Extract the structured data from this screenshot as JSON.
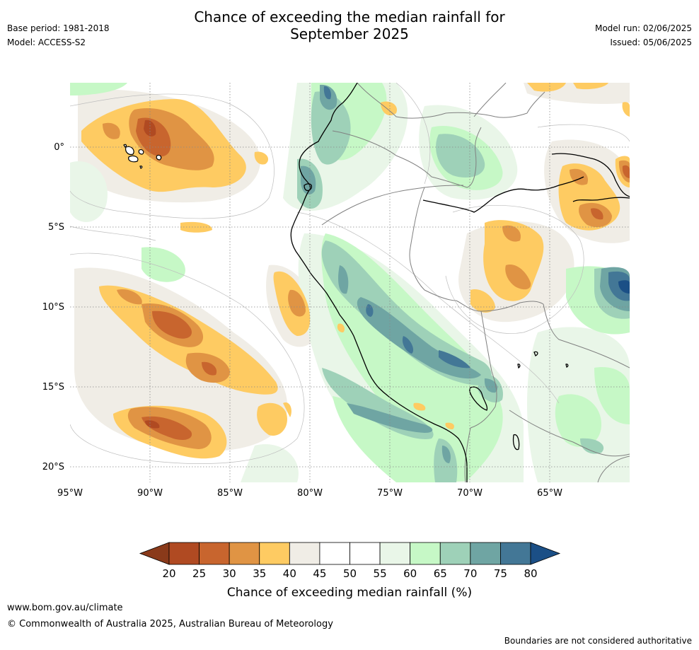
{
  "header": {
    "title_line1": "Chance of exceeding the median rainfall for",
    "title_line2": "September 2025",
    "base_period": "Base period: 1981-2018",
    "model": "Model: ACCESS-S2",
    "model_run": "Model run: 02/06/2025",
    "issued": "Issued: 05/06/2025"
  },
  "map": {
    "lon_labels": [
      "95°W",
      "90°W",
      "85°W",
      "80°W",
      "75°W",
      "70°W",
      "65°W"
    ],
    "lat_labels": [
      "0°",
      "5°S",
      "10°S",
      "15°S",
      "20°S"
    ]
  },
  "colorbar": {
    "ticks": [
      "20",
      "25",
      "30",
      "35",
      "40",
      "45",
      "50",
      "55",
      "60",
      "65",
      "70",
      "75",
      "80"
    ],
    "colors": [
      "#b04a22",
      "#c8652e",
      "#e09444",
      "#fecb62",
      "#f0ede6",
      "#ffffff",
      "#ffffff",
      "#e9f6e8",
      "#c6f8c6",
      "#9ed1b8",
      "#6fa5a3",
      "#437796"
    ],
    "under_color": "#8a3a1a",
    "over_color": "#1b4f86",
    "label": "Chance of exceeding median rainfall (%)"
  },
  "footer": {
    "website": "www.bom.gov.au/climate",
    "copyright": "© Commonwealth of Australia 2025, Australian Bureau of Meteorology",
    "disclaimer": "Boundaries are not considered authoritative"
  }
}
